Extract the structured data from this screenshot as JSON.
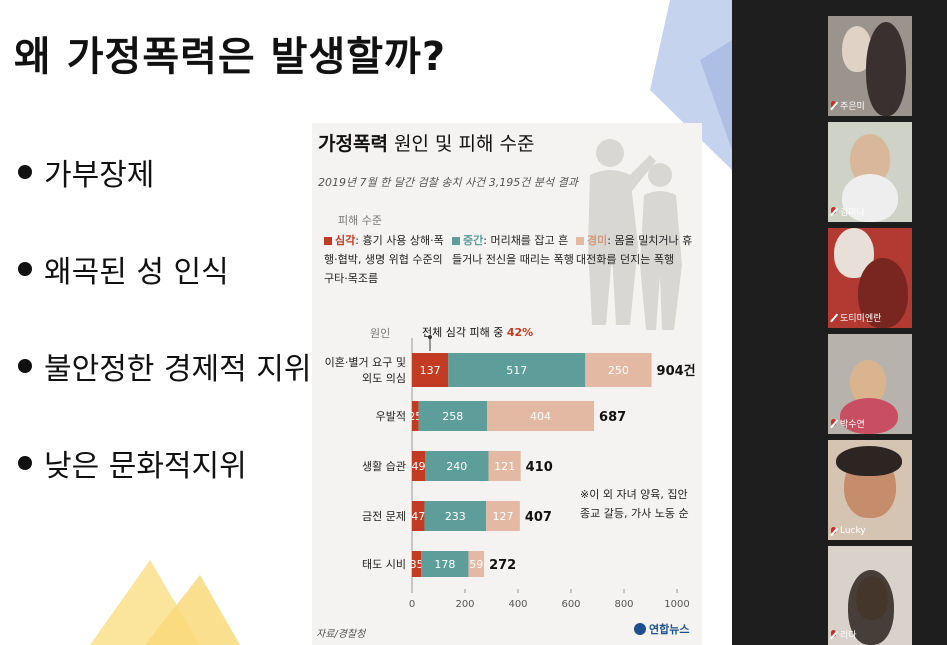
{
  "slide": {
    "title": "왜 가정폭력은 발생할까?",
    "bullets": [
      "가부장제",
      "왜곡된 성 인식",
      "불안정한 경제적 지위",
      "낮은 문화적지위"
    ]
  },
  "infographic": {
    "title_bold": "가정폭력",
    "title_rest": " 원인 및 피해 수준",
    "subtitle": "2019년 7월 한 달간 검찰 송치 사건 3,195건 분석 결과",
    "legend_title": "피해 수준",
    "legend": [
      {
        "key": "심각",
        "desc": ": 흉기 사용 상해·폭행·협박, 생명 위협 수준의 구타·목조름",
        "color": "#c23b22"
      },
      {
        "key": "중간",
        "desc": ": 머리채를 잡고 흔들거나 전신을 때리는 폭행",
        "color": "#5e9e9a"
      },
      {
        "key": "경미",
        "desc": ": 몸을 밀치거나 휴대전화를 던지는 폭행",
        "color": "#e4b9a3"
      }
    ],
    "axis_header": "원인",
    "callout_text": "전체 심각 피해 중 ",
    "callout_pct": "42%",
    "note": "※이 외 자녀 양육, 집안 종교 갈등, 가사 노동 순",
    "source": "자료/경찰청",
    "logo": "연합뉴스"
  },
  "chart_data": {
    "type": "bar",
    "orientation": "horizontal",
    "stacked": true,
    "categories": [
      "이혼·별거 요구 및 외도 의심",
      "우발적",
      "생활 습관",
      "금전 문제",
      "태도 시비"
    ],
    "series": [
      {
        "name": "심각",
        "values": [
          137,
          25,
          49,
          47,
          35
        ],
        "color": "#c23b22"
      },
      {
        "name": "중간",
        "values": [
          517,
          258,
          240,
          233,
          178
        ],
        "color": "#5e9e9a"
      },
      {
        "name": "경미",
        "values": [
          250,
          404,
          121,
          127,
          59
        ],
        "color": "#e4b9a3"
      }
    ],
    "totals": [
      "904",
      "687",
      "410",
      "407",
      "272"
    ],
    "total_unit": "건",
    "xticks": [
      0,
      200,
      400,
      600,
      800,
      1000
    ],
    "xlim": [
      0,
      1000
    ]
  },
  "participants": [
    {
      "name": "주은미"
    },
    {
      "name": "김미나"
    },
    {
      "name": "도티미엔란"
    },
    {
      "name": "박수연"
    },
    {
      "name": "Lucky"
    },
    {
      "name": "리다"
    }
  ]
}
